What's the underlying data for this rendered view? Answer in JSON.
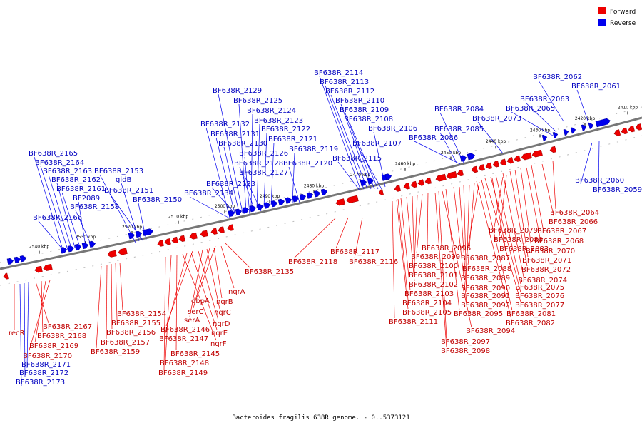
{
  "legend": [
    {
      "label": "Forward",
      "color": "#ee0000"
    },
    {
      "label": "Reverse",
      "color": "#0000ee"
    }
  ],
  "caption": "Bacteroides fragilis 638R genome. - 0..5373121",
  "ticks": [
    "2540 kbp",
    "2530 kbp",
    "2520 kbp",
    "2510 kbp",
    "2500 kbp",
    "2490 kbp",
    "2480 kbp",
    "2470 kbp",
    "2460 kbp",
    "2450 kbp",
    "2440 kbp",
    "2430 kbp",
    "2420 kbp",
    "2410 kbp"
  ],
  "reverse_labels_top": [
    "BF638R_2114",
    "BF638R_2113",
    "BF638R_2112",
    "BF638R_2110",
    "BF638R_2109",
    "BF638R_2108",
    "BF638R_2106",
    "BF638R_2107",
    "BF638R_2115",
    "BF638R_2129",
    "BF638R_2125",
    "BF638R_2124",
    "BF638R_2123",
    "BF638R_2122",
    "BF638R_2121",
    "BF638R_2119",
    "BF638R_2120",
    "BF638R_2132",
    "BF638R_2131",
    "BF638R_2130",
    "BF638R_2126",
    "BF638R_2128",
    "BF638R_2127",
    "BF638R_2133",
    "BF638R_2134",
    "BF638R_2165",
    "BF638R_2164",
    "BF638R_2163",
    "BF638R_2153",
    "BF638R_2162",
    "gidB",
    "BF638R_2161",
    "BF638R_2151",
    "BF2089",
    "BF638R_2150",
    "BF638R_2158",
    "BF638R_2166",
    "BF638R_2062",
    "BF638R_2061",
    "BF638R_2063",
    "BF638R_2065",
    "BF638R_2084",
    "BF638R_2073",
    "BF638R_2085",
    "BF638R_2086",
    "BF638R_2060",
    "BF638R_2059"
  ],
  "forward_labels": [
    "BF638R_2064",
    "BF638R_2066",
    "BF638R_2067",
    "BF638R_2068",
    "BF638R_2070",
    "BF638R_2071",
    "BF638R_2072",
    "BF638R_2074",
    "BF638R_2075",
    "BF638R_2076",
    "BF638R_2077",
    "BF638R_2081",
    "BF638R_2082",
    "BF638R_2079",
    "BF638R_2080",
    "BF638R_2083",
    "BF638R_2087",
    "BF638R_2088",
    "BF638R_2089",
    "BF638R_2090",
    "BF638R_2091",
    "BF638R_2092",
    "BF638R_2095",
    "BF638R_2094",
    "BF638R_2097",
    "BF638R_2098",
    "BF638R_2096",
    "BF638R_2099",
    "BF638R_2100",
    "BF638R_2101",
    "BF638R_2102",
    "BF638R_2103",
    "BF638R_2104",
    "BF638R_2105",
    "BF638R_2111",
    "BF638R_2117",
    "BF638R_2118",
    "BF638R_2116",
    "BF638R_2135",
    "nqrA",
    "dbpA",
    "nqrB",
    "serC",
    "nqrC",
    "serA",
    "nqrD",
    "BF638R_2146",
    "nqrE",
    "BF638R_2147",
    "nqrF",
    "BF638R_2145",
    "BF638R_2148",
    "BF638R_2149",
    "BF638R_2154",
    "BF638R_2155",
    "BF638R_2156",
    "BF638R_2157",
    "BF638R_2159",
    "recR",
    "BF638R_2167",
    "BF638R_2168",
    "BF638R_2169",
    "BF638R_2170"
  ],
  "reverse_labels_bottom": [
    "BF638R_2171",
    "BF638R_2172",
    "BF638R_2173"
  ]
}
